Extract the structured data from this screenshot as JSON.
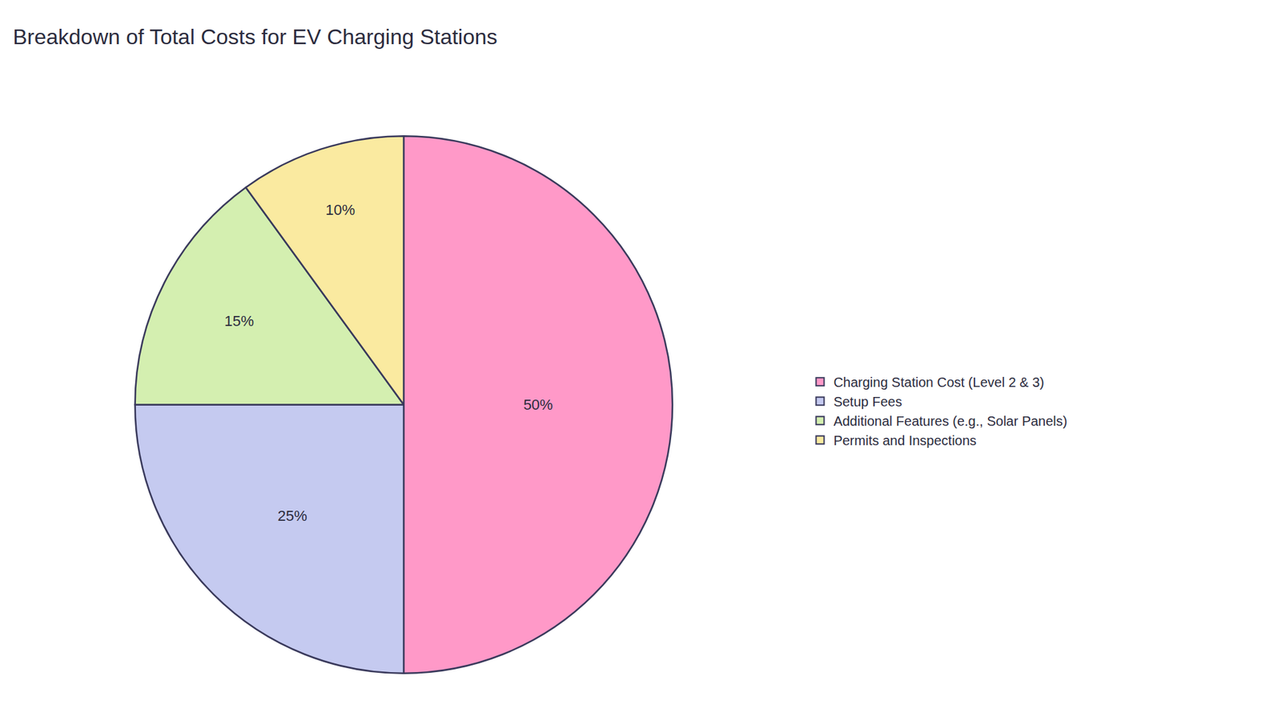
{
  "chart_data": {
    "type": "pie",
    "title": "Breakdown of Total Costs for EV Charging Stations",
    "categories": [
      "Charging Station Cost (Level 2 & 3)",
      "Setup Fees",
      "Additional Features (e.g., Solar Panels)",
      "Permits and Inspections"
    ],
    "values": [
      50,
      25,
      15,
      10
    ],
    "value_labels": [
      "50%",
      "25%",
      "15%",
      "10%"
    ],
    "data_labels": true,
    "colors": [
      "#FF99C8",
      "#C5CAF0",
      "#D4EFB0",
      "#FAEAA0"
    ],
    "legend": "right"
  }
}
